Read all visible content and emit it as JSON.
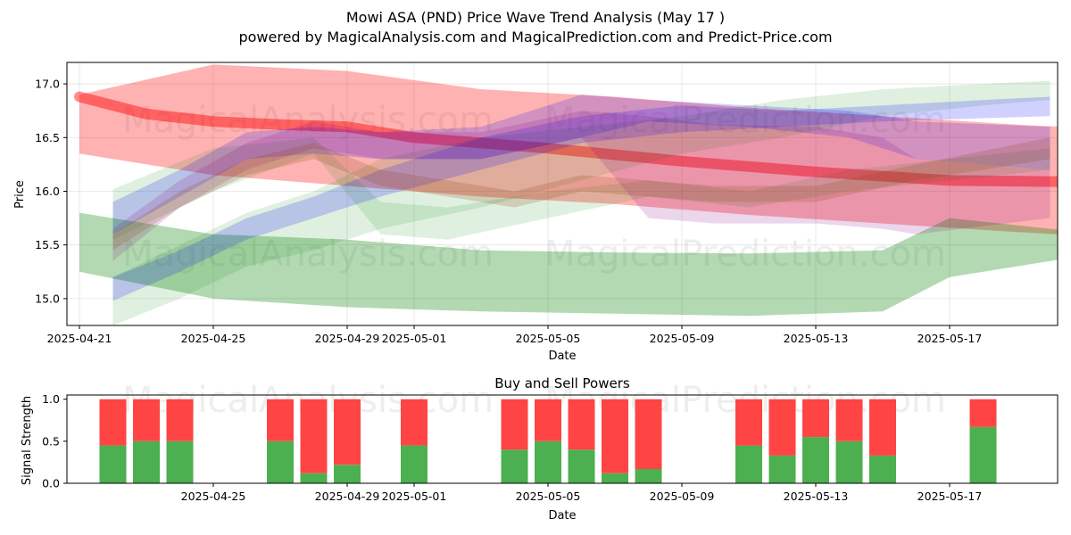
{
  "chart_data": [
    {
      "type": "area",
      "title": "Mowi ASA (PND) Price Wave Trend Analysis (May 17 )",
      "subtitle": "powered by MagicalAnalysis.com and MagicalPrediction.com and Predict-Price.com",
      "xlabel": "Date",
      "ylabel": "Price",
      "x_ticks": [
        "2025-04-21",
        "2025-04-25",
        "2025-04-29",
        "2025-05-01",
        "2025-05-05",
        "2025-05-09",
        "2025-05-13",
        "2025-05-17"
      ],
      "y_ticks": [
        "15.0",
        "15.5",
        "16.0",
        "16.5",
        "17.0"
      ],
      "xlim": [
        "2025-04-21",
        "2025-05-24"
      ],
      "ylim": [
        14.75,
        17.2
      ],
      "grid": true,
      "watermarks": [
        "MagicalAnalysis.com",
        "MagicalPrediction.com"
      ],
      "series": [
        {
          "color": "#ff0000",
          "kind": "band",
          "opacity": 0.3,
          "x": [
            "2025-04-21",
            "2025-04-25",
            "2025-04-29",
            "2025-05-03",
            "2025-05-07",
            "2025-05-11",
            "2025-05-15",
            "2025-05-19",
            "2025-05-23"
          ],
          "upper": [
            16.9,
            17.18,
            17.12,
            16.95,
            16.88,
            16.78,
            16.7,
            16.62,
            16.56
          ],
          "lower": [
            16.35,
            16.15,
            16.05,
            15.95,
            15.88,
            15.78,
            15.7,
            15.62,
            15.55
          ]
        },
        {
          "color": "#ff0000",
          "kind": "line",
          "opacity": 0.45,
          "x": [
            "2025-04-21",
            "2025-04-23",
            "2025-04-25",
            "2025-04-27",
            "2025-04-29",
            "2025-05-01",
            "2025-05-05",
            "2025-05-09",
            "2025-05-13",
            "2025-05-17",
            "2025-05-23"
          ],
          "y": [
            16.88,
            16.72,
            16.65,
            16.62,
            16.6,
            16.5,
            16.4,
            16.28,
            16.18,
            16.1,
            16.08
          ]
        },
        {
          "color": "#008000",
          "kind": "band",
          "opacity": 0.3,
          "x": [
            "2025-04-21",
            "2025-04-25",
            "2025-04-29",
            "2025-05-03",
            "2025-05-07",
            "2025-05-11",
            "2025-05-15",
            "2025-05-17",
            "2025-05-23"
          ],
          "upper": [
            15.8,
            15.6,
            15.55,
            15.45,
            15.43,
            15.42,
            15.45,
            15.75,
            15.55
          ],
          "lower": [
            15.25,
            15.0,
            14.92,
            14.88,
            14.86,
            14.84,
            14.88,
            15.2,
            15.5
          ]
        },
        {
          "color": "#008000",
          "kind": "band",
          "opacity": 0.12,
          "x": [
            "2025-04-22",
            "2025-04-25",
            "2025-04-28",
            "2025-04-30",
            "2025-05-02",
            "2025-05-05",
            "2025-05-08",
            "2025-05-11",
            "2025-05-14",
            "2025-05-17",
            "2025-05-20"
          ],
          "upper": [
            16.02,
            16.4,
            16.5,
            15.9,
            15.85,
            16.0,
            16.1,
            16.0,
            16.2,
            16.3,
            16.4
          ],
          "lower": [
            15.55,
            16.0,
            16.35,
            15.6,
            15.55,
            15.75,
            15.95,
            15.85,
            16.0,
            16.1,
            16.2
          ]
        },
        {
          "color": "#008000",
          "kind": "band",
          "opacity": 0.12,
          "x": [
            "2025-04-22",
            "2025-04-24",
            "2025-04-26",
            "2025-04-28",
            "2025-04-30",
            "2025-05-03",
            "2025-05-06",
            "2025-05-09",
            "2025-05-12",
            "2025-05-15",
            "2025-05-18",
            "2025-05-20"
          ],
          "upper": [
            15.2,
            15.5,
            15.8,
            16.0,
            16.3,
            16.5,
            16.6,
            16.7,
            16.85,
            16.95,
            17.0,
            17.03
          ],
          "lower": [
            14.75,
            15.0,
            15.3,
            15.45,
            15.65,
            15.85,
            16.1,
            16.35,
            16.5,
            16.7,
            16.8,
            16.85
          ]
        },
        {
          "color": "#0000ff",
          "kind": "band",
          "opacity": 0.18,
          "x": [
            "2025-04-22",
            "2025-04-24",
            "2025-04-26",
            "2025-04-28",
            "2025-04-30",
            "2025-05-03",
            "2025-05-06",
            "2025-05-09",
            "2025-05-12",
            "2025-05-15",
            "2025-05-18",
            "2025-05-20"
          ],
          "upper": [
            15.2,
            15.45,
            15.75,
            15.95,
            16.2,
            16.5,
            16.7,
            16.8,
            16.75,
            16.8,
            16.85,
            16.88
          ],
          "lower": [
            14.98,
            15.25,
            15.55,
            15.75,
            15.95,
            16.2,
            16.45,
            16.55,
            16.6,
            16.65,
            16.68,
            16.7
          ]
        },
        {
          "color": "#0000ff",
          "kind": "band",
          "opacity": 0.18,
          "x": [
            "2025-04-22",
            "2025-04-24",
            "2025-04-26",
            "2025-04-28",
            "2025-04-30",
            "2025-05-03",
            "2025-05-06",
            "2025-05-08",
            "2025-05-11",
            "2025-05-14",
            "2025-05-16",
            "2025-05-20"
          ],
          "upper": [
            15.9,
            16.2,
            16.55,
            16.6,
            16.55,
            16.6,
            16.9,
            16.85,
            16.8,
            16.75,
            16.65,
            16.6
          ],
          "lower": [
            15.6,
            15.95,
            16.3,
            16.35,
            16.3,
            16.3,
            16.5,
            16.65,
            16.6,
            16.5,
            16.3,
            16.2
          ]
        },
        {
          "color": "#800080",
          "kind": "band",
          "opacity": 0.16,
          "x": [
            "2025-04-22",
            "2025-04-24",
            "2025-04-26",
            "2025-04-28",
            "2025-04-30",
            "2025-05-03",
            "2025-05-06",
            "2025-05-08",
            "2025-05-10",
            "2025-05-13",
            "2025-05-15",
            "2025-05-16",
            "2025-05-20"
          ],
          "upper": [
            15.65,
            16.1,
            16.45,
            16.65,
            16.55,
            16.55,
            16.75,
            16.7,
            16.62,
            16.6,
            16.5,
            16.3,
            16.2
          ],
          "lower": [
            15.35,
            15.85,
            16.2,
            16.4,
            16.3,
            16.3,
            16.5,
            15.75,
            15.7,
            15.7,
            15.65,
            15.6,
            15.75
          ]
        },
        {
          "color": "#8b4513",
          "kind": "band",
          "opacity": 0.2,
          "x": [
            "2025-04-22",
            "2025-04-24",
            "2025-04-26",
            "2025-04-28",
            "2025-04-30",
            "2025-05-02",
            "2025-05-04",
            "2025-05-06",
            "2025-05-08",
            "2025-05-10",
            "2025-05-13",
            "2025-05-16",
            "2025-05-20"
          ],
          "upper": [
            15.6,
            16.0,
            16.3,
            16.45,
            16.2,
            16.1,
            16.0,
            16.15,
            16.1,
            16.05,
            16.05,
            16.25,
            16.5
          ],
          "lower": [
            15.45,
            15.85,
            16.15,
            16.3,
            16.05,
            15.95,
            15.85,
            16.0,
            15.95,
            15.9,
            15.9,
            16.1,
            16.3
          ]
        }
      ]
    },
    {
      "type": "bar",
      "title": "Buy and Sell Powers",
      "xlabel": "Date",
      "ylabel": "Signal Strength",
      "x_ticks": [
        "2025-04-25",
        "2025-04-29",
        "2025-05-01",
        "2025-05-05",
        "2025-05-09",
        "2025-05-13",
        "2025-05-17"
      ],
      "y_ticks": [
        "0.0",
        "0.5",
        "1.0"
      ],
      "ylim": [
        0,
        1.05
      ],
      "buy_color": "#4caf50",
      "sell_color": "#ff4444",
      "dates": [
        "2025-04-22",
        "2025-04-23",
        "2025-04-24",
        "2025-04-27",
        "2025-04-28",
        "2025-04-29",
        "2025-05-01",
        "2025-05-04",
        "2025-05-05",
        "2025-05-06",
        "2025-05-07",
        "2025-05-08",
        "2025-05-11",
        "2025-05-12",
        "2025-05-13",
        "2025-05-14",
        "2025-05-15",
        "2025-05-18"
      ],
      "buy": [
        0.45,
        0.5,
        0.5,
        0.5,
        0.12,
        0.22,
        0.45,
        0.4,
        0.5,
        0.4,
        0.12,
        0.17,
        0.45,
        0.33,
        0.55,
        0.5,
        0.33,
        0.67
      ],
      "sell": [
        0.55,
        0.5,
        0.5,
        0.5,
        0.88,
        0.78,
        0.55,
        0.6,
        0.5,
        0.6,
        0.88,
        0.83,
        0.55,
        0.67,
        0.45,
        0.5,
        0.67,
        0.33
      ]
    }
  ]
}
